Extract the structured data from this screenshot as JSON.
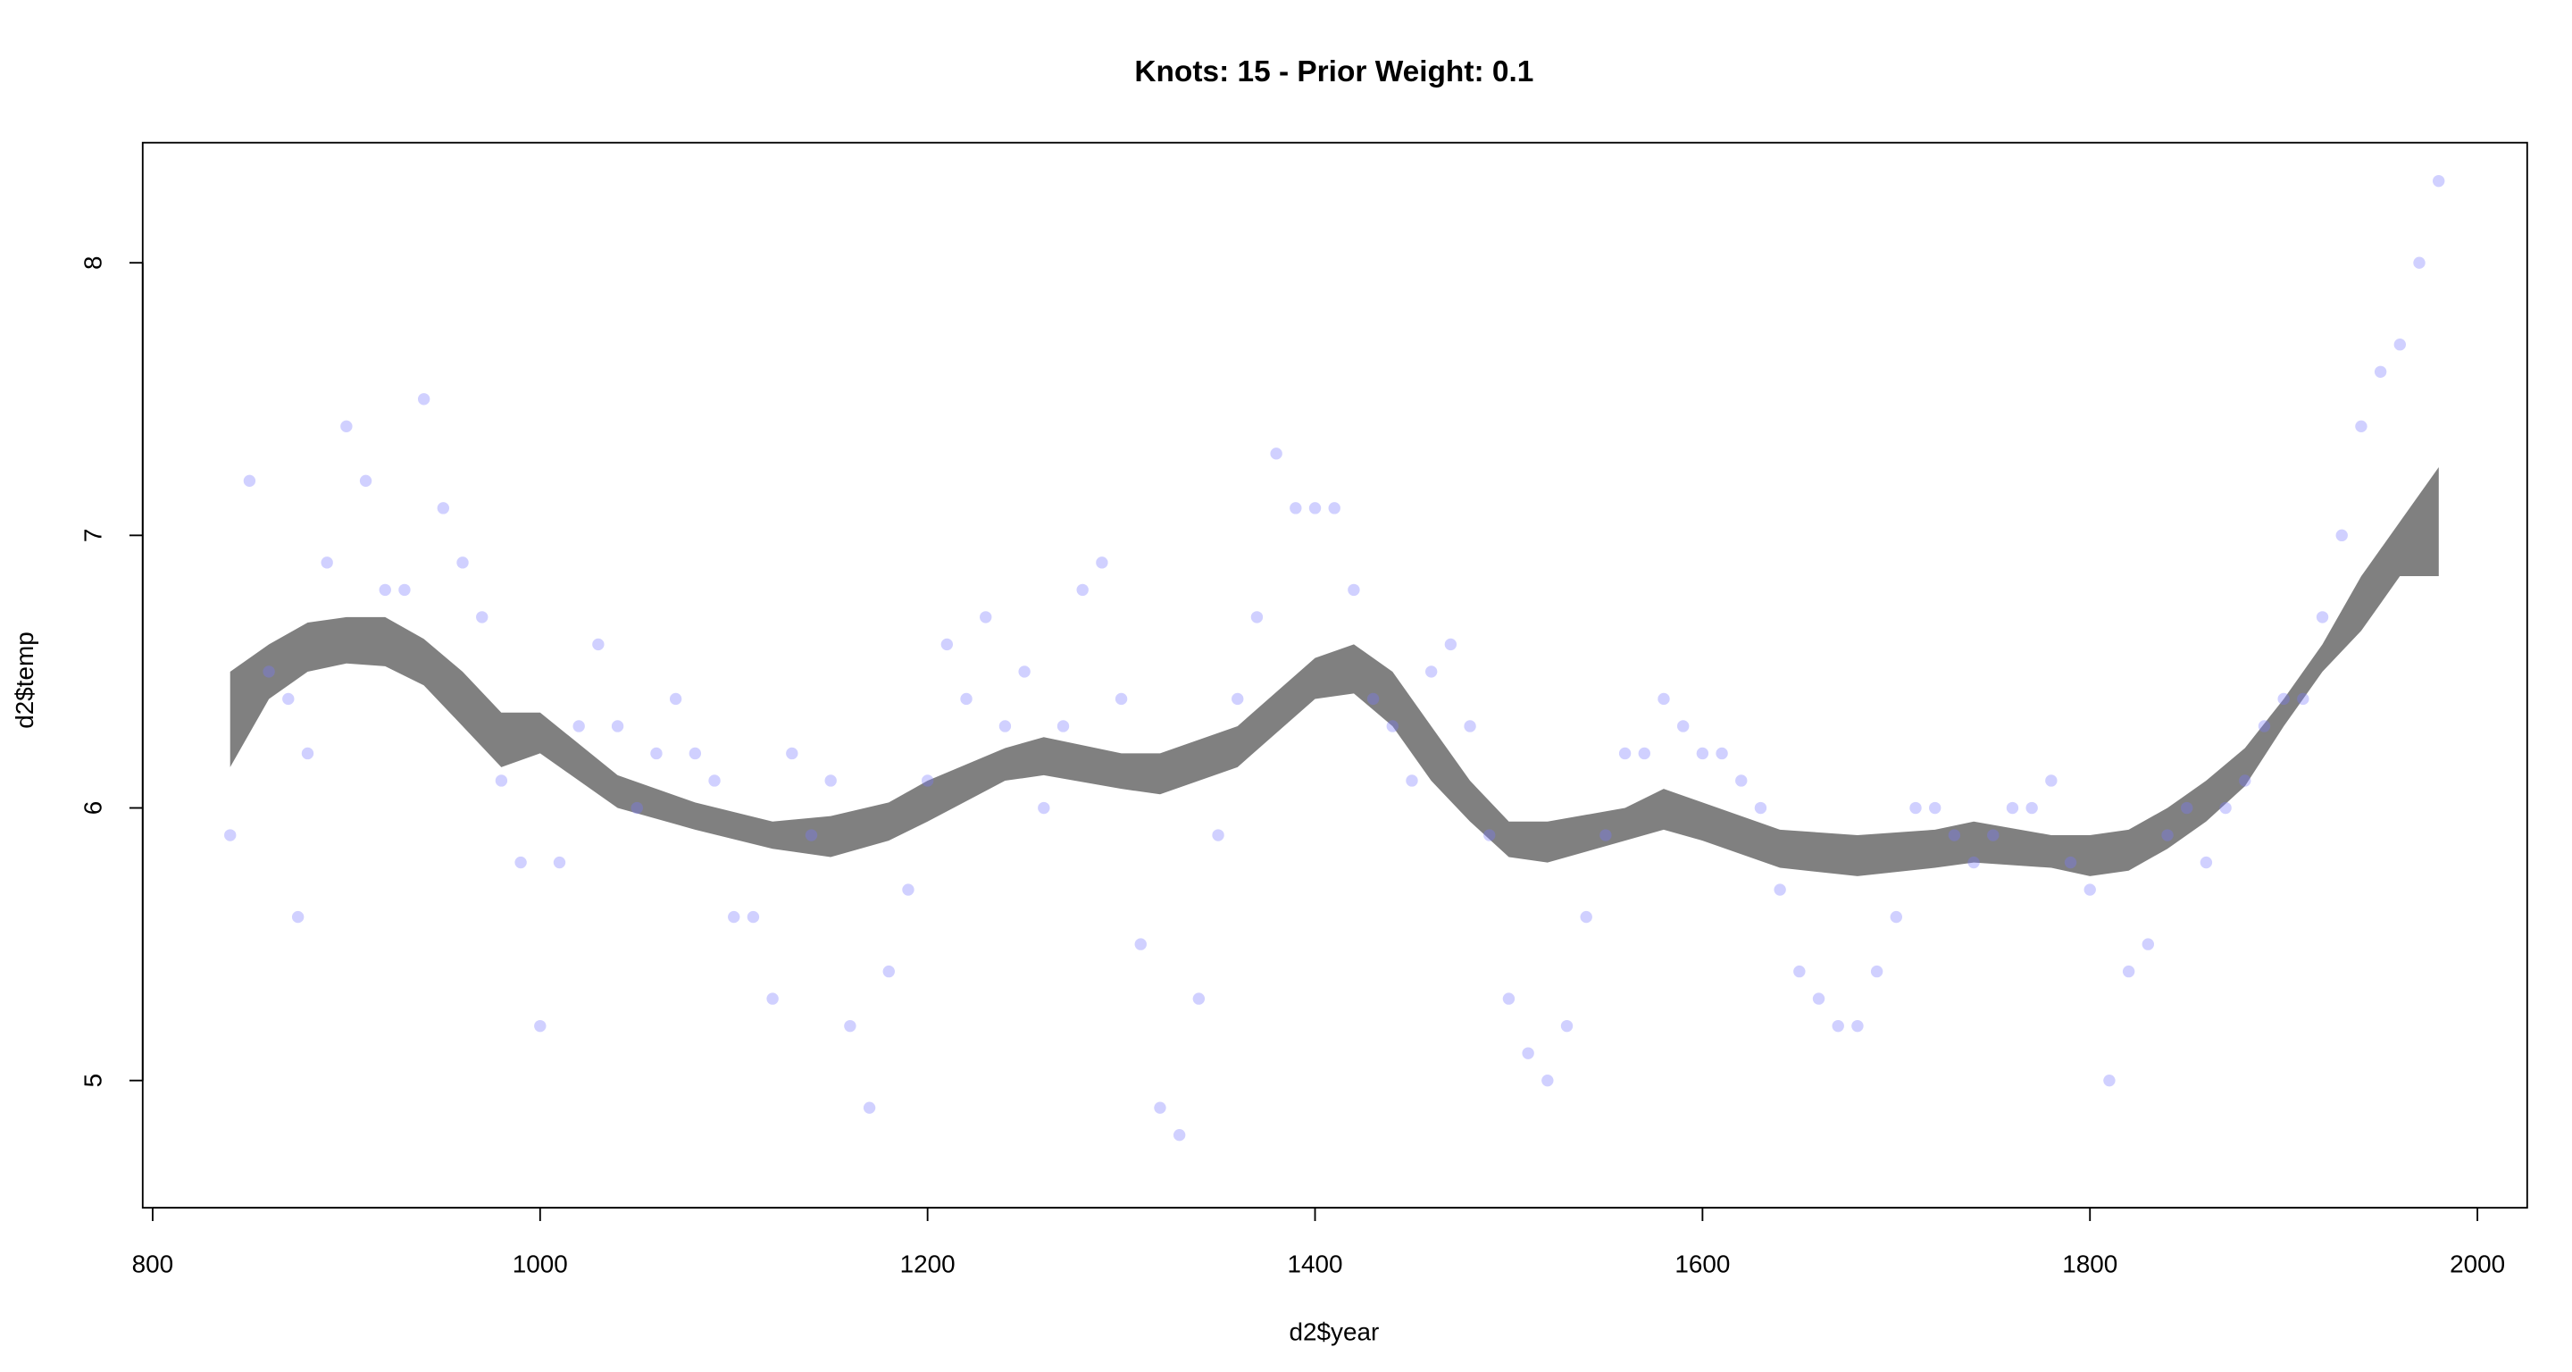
{
  "chart_data": {
    "type": "scatter",
    "title": "Knots: 15 - Prior Weight: 0.1",
    "xlabel": "d2$year",
    "ylabel": "d2$temp",
    "xlim": [
      780,
      2025
    ],
    "ylim": [
      4.5,
      8.45
    ],
    "xticks": [
      800,
      1000,
      1200,
      1400,
      1600,
      1800,
      2000
    ],
    "yticks": [
      5,
      6,
      7,
      8
    ],
    "grid": false,
    "point_color": "#7878ff",
    "band_color": "#808080",
    "points": {
      "year": [
        840,
        850,
        860,
        870,
        875,
        880,
        890,
        900,
        910,
        920,
        930,
        940,
        950,
        960,
        970,
        980,
        990,
        1000,
        1010,
        1020,
        1030,
        1040,
        1050,
        1060,
        1070,
        1080,
        1090,
        1100,
        1110,
        1120,
        1130,
        1140,
        1150,
        1160,
        1170,
        1180,
        1190,
        1200,
        1210,
        1220,
        1230,
        1240,
        1250,
        1260,
        1270,
        1280,
        1290,
        1300,
        1310,
        1320,
        1330,
        1340,
        1350,
        1360,
        1370,
        1380,
        1390,
        1400,
        1410,
        1420,
        1430,
        1440,
        1450,
        1460,
        1470,
        1480,
        1490,
        1500,
        1510,
        1520,
        1530,
        1540,
        1550,
        1560,
        1570,
        1580,
        1590,
        1600,
        1610,
        1620,
        1630,
        1640,
        1650,
        1660,
        1670,
        1680,
        1690,
        1700,
        1710,
        1720,
        1730,
        1740,
        1750,
        1760,
        1770,
        1780,
        1790,
        1800,
        1810,
        1820,
        1830,
        1840,
        1850,
        1860,
        1870,
        1880,
        1890,
        1900,
        1910,
        1920,
        1930,
        1940,
        1950,
        1960,
        1970,
        1980
      ],
      "temp": [
        5.9,
        7.2,
        6.5,
        6.4,
        5.6,
        6.2,
        6.9,
        7.4,
        7.2,
        6.8,
        6.8,
        7.5,
        7.1,
        6.9,
        6.7,
        6.1,
        5.8,
        5.2,
        5.8,
        6.3,
        6.6,
        6.3,
        6.0,
        6.2,
        6.4,
        6.2,
        6.1,
        5.6,
        5.6,
        5.3,
        6.2,
        5.9,
        6.1,
        5.2,
        4.9,
        5.4,
        5.7,
        6.1,
        6.6,
        6.4,
        6.7,
        6.3,
        6.5,
        6.0,
        6.3,
        6.8,
        6.9,
        6.4,
        5.5,
        4.9,
        4.8,
        5.3,
        5.9,
        6.4,
        6.7,
        7.3,
        7.1,
        7.1,
        7.1,
        6.8,
        6.4,
        6.3,
        6.1,
        6.5,
        6.6,
        6.3,
        5.9,
        5.3,
        5.1,
        5.0,
        5.2,
        5.6,
        5.9,
        6.2,
        6.2,
        6.4,
        6.3,
        6.2,
        6.2,
        6.1,
        6.0,
        5.7,
        5.4,
        5.3,
        5.2,
        5.2,
        5.4,
        5.6,
        6.0,
        6.0,
        5.9,
        5.8,
        5.9,
        6.0,
        6.0,
        6.1,
        5.8,
        5.7,
        5.0,
        5.4,
        5.5,
        5.9,
        6.0,
        5.8,
        6.0,
        6.1,
        6.3,
        6.4,
        6.4,
        6.7,
        7.0,
        7.4,
        7.6,
        7.7,
        8.0,
        8.3
      ]
    },
    "band": {
      "year": [
        840,
        860,
        880,
        900,
        920,
        940,
        960,
        980,
        1000,
        1040,
        1080,
        1120,
        1150,
        1180,
        1200,
        1240,
        1260,
        1300,
        1320,
        1360,
        1400,
        1420,
        1440,
        1460,
        1480,
        1500,
        1520,
        1560,
        1580,
        1600,
        1640,
        1680,
        1720,
        1740,
        1780,
        1800,
        1820,
        1840,
        1860,
        1880,
        1900,
        1920,
        1940,
        1960,
        1980
      ],
      "lower": [
        6.15,
        6.4,
        6.5,
        6.53,
        6.52,
        6.45,
        6.3,
        6.15,
        6.2,
        6.0,
        5.92,
        5.85,
        5.82,
        5.88,
        5.95,
        6.1,
        6.12,
        6.07,
        6.05,
        6.15,
        6.4,
        6.42,
        6.3,
        6.1,
        5.95,
        5.82,
        5.8,
        5.88,
        5.92,
        5.88,
        5.78,
        5.75,
        5.78,
        5.8,
        5.78,
        5.75,
        5.77,
        5.85,
        5.95,
        6.08,
        6.3,
        6.5,
        6.65,
        6.85,
        6.85
      ],
      "upper": [
        6.5,
        6.6,
        6.68,
        6.7,
        6.7,
        6.62,
        6.5,
        6.35,
        6.35,
        6.12,
        6.02,
        5.95,
        5.97,
        6.02,
        6.1,
        6.22,
        6.26,
        6.2,
        6.2,
        6.3,
        6.55,
        6.6,
        6.5,
        6.3,
        6.1,
        5.95,
        5.95,
        6.0,
        6.07,
        6.02,
        5.92,
        5.9,
        5.92,
        5.95,
        5.9,
        5.9,
        5.92,
        6.0,
        6.1,
        6.22,
        6.4,
        6.6,
        6.85,
        7.05,
        7.25
      ]
    }
  }
}
